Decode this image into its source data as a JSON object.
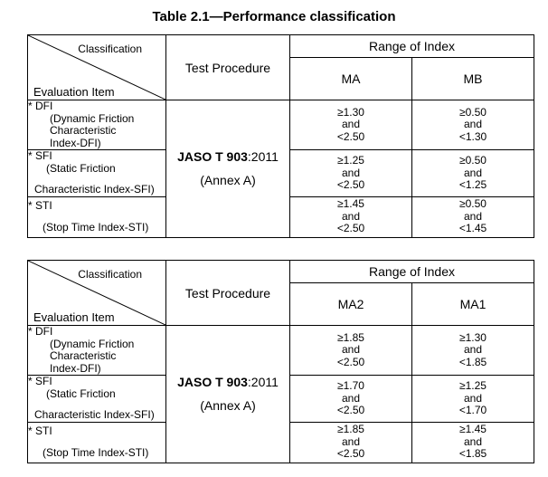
{
  "title": "Table 2.1—Performance classification",
  "tables": [
    {
      "classification_label": "Classification",
      "evaluation_item_label": "Evaluation Item",
      "test_procedure_label": "Test Procedure",
      "range_label": "Range of Index",
      "col1": "MA",
      "col2": "MB",
      "procedure_bold": "JASO T 903",
      "procedure_suffix": ":2011",
      "procedure_annex": "(Annex A)",
      "rows": [
        {
          "name": "* DFI",
          "line1": "(Dynamic Friction",
          "line2": "Characteristic",
          "line3": "Index-DFI)",
          "c1": [
            "≥1.30",
            "and",
            "<2.50"
          ],
          "c2": [
            "≥0.50",
            "and",
            "<1.30"
          ]
        },
        {
          "name": "* SFI",
          "line1": "(Static Friction",
          "line2": "Characteristic Index-SFI)",
          "c1": [
            "≥1.25",
            "and",
            "<2.50"
          ],
          "c2": [
            "≥0.50",
            "and",
            "<1.25"
          ]
        },
        {
          "name": "* STI",
          "line1": "(Stop Time Index-STI)",
          "c1": [
            "≥1.45",
            "and",
            "<2.50"
          ],
          "c2": [
            "≥0.50",
            "and",
            "<1.45"
          ]
        }
      ]
    },
    {
      "classification_label": "Classification",
      "evaluation_item_label": "Evaluation Item",
      "test_procedure_label": "Test Procedure",
      "range_label": "Range of Index",
      "col1": "MA2",
      "col2": "MA1",
      "procedure_bold": "JASO T 903",
      "procedure_suffix": ":2011",
      "procedure_annex": "(Annex A)",
      "rows": [
        {
          "name": "* DFI",
          "line1": "(Dynamic Friction",
          "line2": "Characteristic",
          "line3": "Index-DFI)",
          "c1": [
            "≥1.85",
            "and",
            "<2.50"
          ],
          "c2": [
            "≥1.30",
            "and",
            "<1.85"
          ]
        },
        {
          "name": "* SFI",
          "line1": "(Static Friction",
          "line2": "Characteristic Index-SFI)",
          "c1": [
            "≥1.70",
            "and",
            "<2.50"
          ],
          "c2": [
            "≥1.25",
            "and",
            "<1.70"
          ]
        },
        {
          "name": "* STI",
          "line1": "(Stop Time Index-STI)",
          "c1": [
            "≥1.85",
            "and",
            "<2.50"
          ],
          "c2": [
            "≥1.45",
            "and",
            "<1.85"
          ]
        }
      ]
    }
  ]
}
